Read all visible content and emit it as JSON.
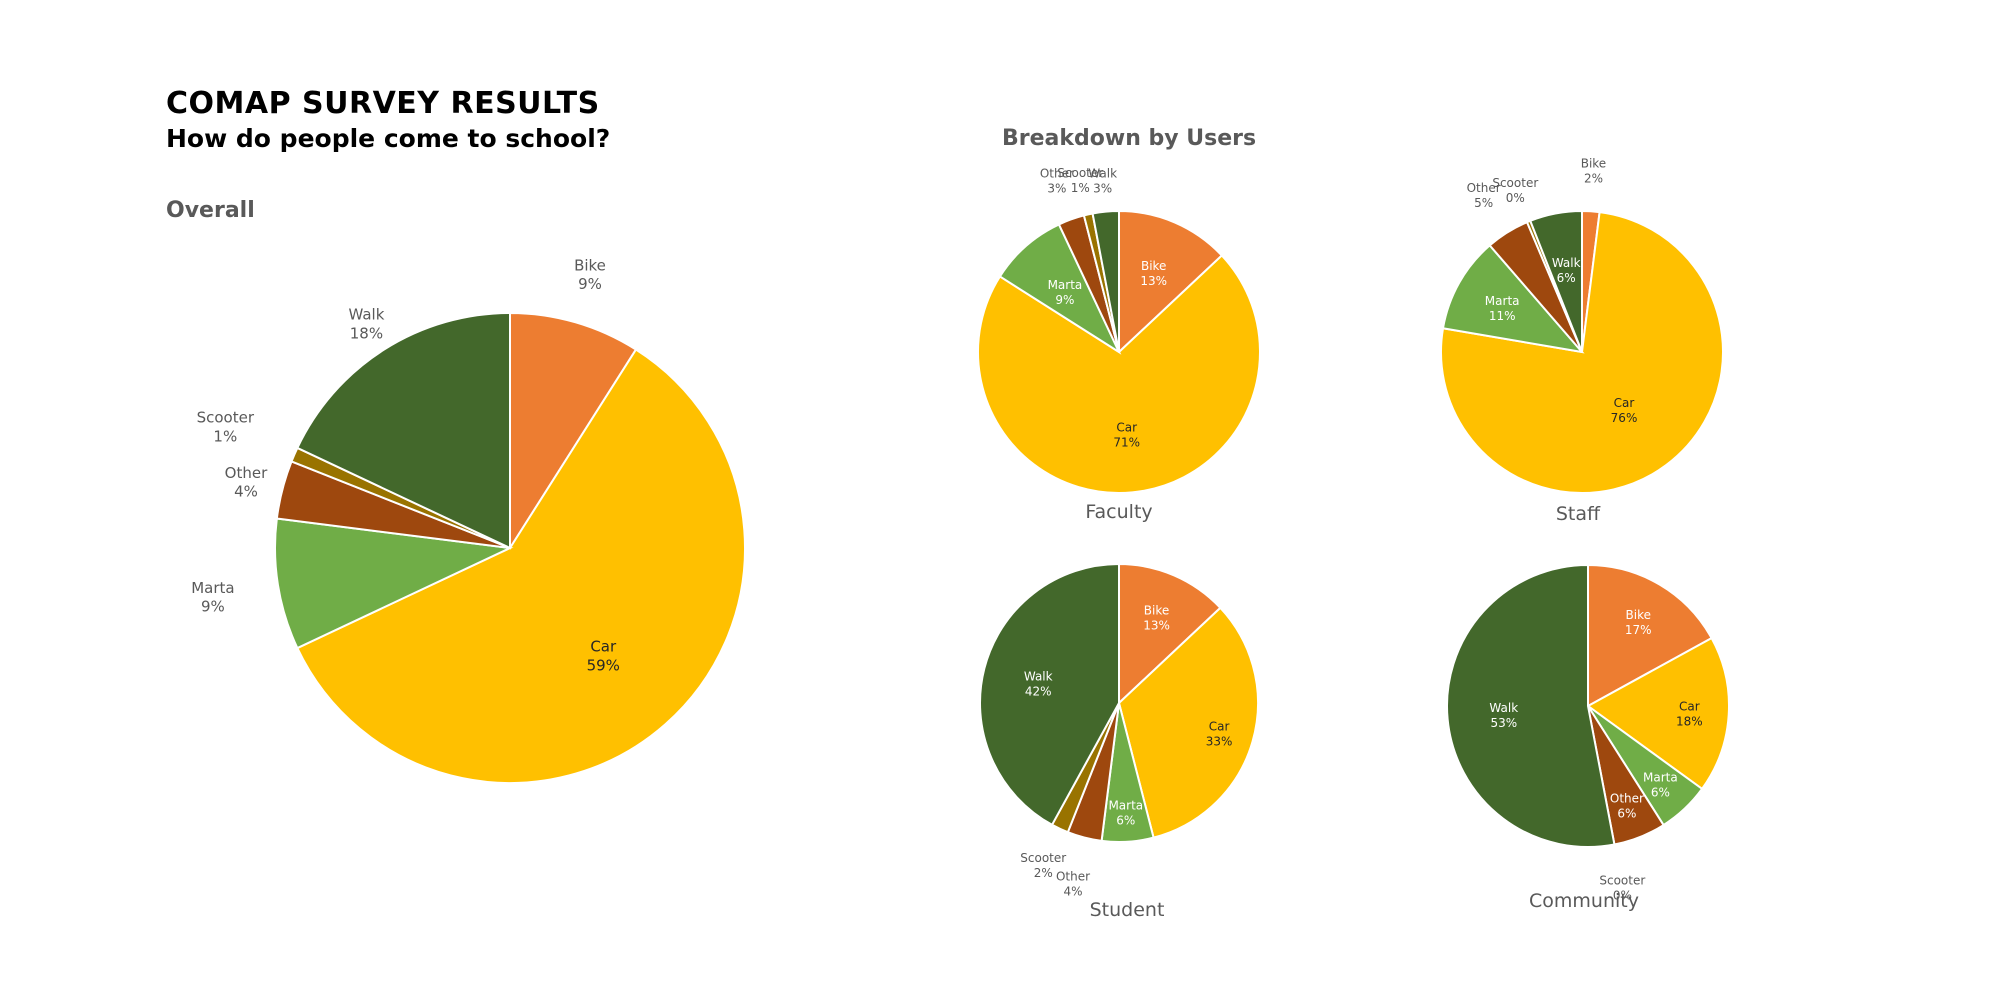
{
  "header": {
    "title": "COMAP SURVEY RESULTS",
    "subtitle": "How do people come to school?",
    "overall_heading": "Overall",
    "breakdown_heading": "Breakdown by Users"
  },
  "colors": {
    "Bike": "#ED7D31",
    "Car": "#FFC000",
    "Marta": "#70AD47",
    "Other": "#9E480E",
    "Scooter": "#997300",
    "Walk": "#43682B"
  },
  "chart_data": [
    {
      "type": "pie",
      "id": "overall",
      "title": "",
      "slices": [
        {
          "label": "Bike",
          "value": 9,
          "text": "9%"
        },
        {
          "label": "Car",
          "value": 59,
          "text": "59%"
        },
        {
          "label": "Marta",
          "value": 9,
          "text": "9%"
        },
        {
          "label": "Other",
          "value": 4,
          "text": "4%"
        },
        {
          "label": "Scooter",
          "value": 1,
          "text": "1%"
        },
        {
          "label": "Walk",
          "value": 18,
          "text": "18%"
        }
      ]
    },
    {
      "type": "pie",
      "id": "faculty",
      "title": "Faculty",
      "slices": [
        {
          "label": "Bike",
          "value": 13,
          "text": "13%"
        },
        {
          "label": "Car",
          "value": 71,
          "text": "71%"
        },
        {
          "label": "Marta",
          "value": 9,
          "text": "9%"
        },
        {
          "label": "Other",
          "value": 3,
          "text": "3%"
        },
        {
          "label": "Scooter",
          "value": 1,
          "text": "1%"
        },
        {
          "label": "Walk",
          "value": 3,
          "text": "3%"
        }
      ]
    },
    {
      "type": "pie",
      "id": "staff",
      "title": "Staff",
      "slices": [
        {
          "label": "Bike",
          "value": 2,
          "text": "2%"
        },
        {
          "label": "Car",
          "value": 76,
          "text": "76%"
        },
        {
          "label": "Marta",
          "value": 11,
          "text": "11%"
        },
        {
          "label": "Other",
          "value": 5,
          "text": "5%"
        },
        {
          "label": "Scooter",
          "value": 0.4,
          "text": "0%"
        },
        {
          "label": "Walk",
          "value": 6,
          "text": "6%"
        }
      ]
    },
    {
      "type": "pie",
      "id": "student",
      "title": "Student",
      "slices": [
        {
          "label": "Bike",
          "value": 13,
          "text": "13%"
        },
        {
          "label": "Car",
          "value": 33,
          "text": "33%"
        },
        {
          "label": "Marta",
          "value": 6,
          "text": "6%"
        },
        {
          "label": "Other",
          "value": 4,
          "text": "4%"
        },
        {
          "label": "Scooter",
          "value": 2,
          "text": "2%"
        },
        {
          "label": "Walk",
          "value": 42,
          "text": "42%"
        }
      ]
    },
    {
      "type": "pie",
      "id": "community",
      "title": "Community",
      "slices": [
        {
          "label": "Bike",
          "value": 17,
          "text": "17%"
        },
        {
          "label": "Car",
          "value": 18,
          "text": "18%"
        },
        {
          "label": "Marta",
          "value": 6,
          "text": "6%"
        },
        {
          "label": "Other",
          "value": 6,
          "text": "6%"
        },
        {
          "label": "Scooter",
          "value": 0,
          "text": "0%"
        },
        {
          "label": "Walk",
          "value": 53,
          "text": "53%"
        }
      ]
    }
  ]
}
